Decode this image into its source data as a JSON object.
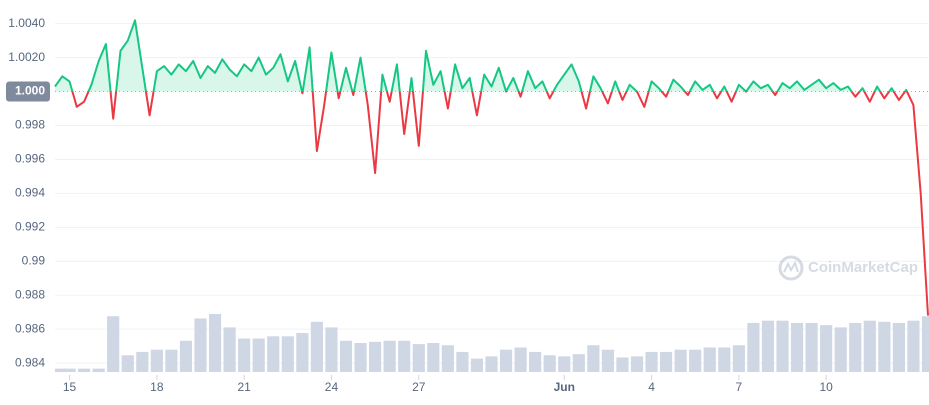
{
  "chart_data": {
    "type": "line",
    "x": [
      14.5,
      14.75,
      15,
      15.25,
      15.5,
      15.75,
      16,
      16.25,
      16.5,
      16.75,
      17,
      17.25,
      17.5,
      17.75,
      18,
      18.25,
      18.5,
      18.75,
      19,
      19.25,
      19.5,
      19.75,
      20,
      20.25,
      20.5,
      20.75,
      21,
      21.25,
      21.5,
      21.75,
      22,
      22.25,
      22.5,
      22.75,
      23,
      23.25,
      23.5,
      23.75,
      24,
      24.25,
      24.5,
      24.75,
      25,
      25.25,
      25.5,
      25.75,
      26,
      26.25,
      26.5,
      26.75,
      27,
      27.25,
      27.5,
      27.75,
      28,
      28.25,
      28.5,
      28.75,
      29,
      29.25,
      29.5,
      29.75,
      30,
      30.25,
      30.5,
      30.75,
      31,
      31.25,
      31.5,
      31.75,
      32,
      32.25,
      32.5,
      32.75,
      33,
      33.25,
      33.5,
      33.75,
      34,
      34.25,
      34.5,
      34.75,
      35,
      35.25,
      35.5,
      35.75,
      36,
      36.25,
      36.5,
      36.75,
      37,
      37.25,
      37.5,
      37.75,
      38,
      38.25,
      38.5,
      38.75,
      39,
      39.25,
      39.5,
      39.75,
      40,
      40.25,
      40.5,
      40.75,
      41,
      41.25,
      41.5,
      41.75,
      42,
      42.25,
      42.5,
      42.75,
      43,
      43.25,
      43.5,
      43.75,
      44,
      44.25,
      44.5
    ],
    "values": [
      1.0003,
      1.0009,
      1.0006,
      0.9991,
      0.9994,
      1.0004,
      1.0018,
      1.0028,
      0.9984,
      1.0024,
      1.003,
      1.0042,
      1.0014,
      0.9986,
      1.0012,
      1.0015,
      1.001,
      1.0016,
      1.0012,
      1.0018,
      1.0008,
      1.0015,
      1.0011,
      1.0019,
      1.0013,
      1.0009,
      1.0016,
      1.0012,
      1.002,
      1.001,
      1.0014,
      1.0022,
      1.0006,
      1.0018,
      0.9999,
      1.0026,
      0.9965,
      0.9992,
      1.0023,
      0.9996,
      1.0014,
      0.9998,
      1.002,
      0.9992,
      0.9952,
      1.001,
      0.9994,
      1.0016,
      0.9975,
      1.0008,
      0.9968,
      1.0024,
      1.0004,
      1.0012,
      0.999,
      1.0016,
      1.0002,
      1.0008,
      0.9986,
      1.001,
      1.0003,
      1.0014,
      1.0,
      1.0008,
      0.9997,
      1.0012,
      1.0002,
      1.0006,
      0.9996,
      1.0004,
      1.001,
      1.0016,
      1.0006,
      0.999,
      1.0009,
      1.0002,
      0.9993,
      1.0006,
      0.9995,
      1.0004,
      1.0,
      0.9991,
      1.0006,
      1.0002,
      0.9997,
      1.0007,
      1.0003,
      0.9998,
      1.0006,
      1.0001,
      1.0004,
      0.9996,
      1.0003,
      0.9994,
      1.0004,
      1.0,
      1.0006,
      1.0002,
      1.0004,
      0.9998,
      1.0005,
      1.0002,
      1.0006,
      1.0001,
      1.0004,
      1.0007,
      1.0002,
      1.0005,
      1.0001,
      1.0003,
      0.9997,
      1.0002,
      0.9994,
      1.0003,
      0.9996,
      1.0002,
      0.9995,
      1.0001,
      0.9992,
      0.994,
      0.9868
    ],
    "color_up": "#16c784",
    "color_down": "#ea3943",
    "fill_up": "#d9f6ea",
    "baseline": {
      "value": 1,
      "label": "1.000"
    },
    "xlim": [
      14.5,
      44.5
    ],
    "ylim": [
      0.9833,
      1.0051
    ],
    "yticks": [
      0.984,
      0.986,
      0.988,
      0.99,
      0.992,
      0.994,
      0.996,
      0.998,
      {
        "value": 1.002,
        "label": "1.0020"
      },
      {
        "value": 1.004,
        "label": "1.0040"
      }
    ],
    "xticks": [
      15,
      18,
      21,
      24,
      27,
      {
        "value": 32,
        "label": "Jun"
      },
      {
        "value": 35,
        "label": "4"
      },
      {
        "value": 38,
        "label": "7"
      },
      {
        "value": 41,
        "label": "10"
      }
    ],
    "grid": true,
    "volume": {
      "color": "#cfd6e4",
      "x": [
        14.5,
        15,
        15.5,
        16,
        16.5,
        17,
        17.5,
        18,
        18.5,
        19,
        19.5,
        20,
        20.5,
        21,
        21.5,
        22,
        22.5,
        23,
        23.5,
        24,
        24.5,
        25,
        25.5,
        26,
        26.5,
        27,
        27.5,
        28,
        28.5,
        29,
        29.5,
        30,
        30.5,
        31,
        31.5,
        32,
        32.5,
        33,
        33.5,
        34,
        34.5,
        35,
        35.5,
        36,
        36.5,
        37,
        37.5,
        38,
        38.5,
        39,
        39.5,
        40,
        40.5,
        41,
        41.5,
        42,
        42.5,
        43,
        43.5,
        44,
        44.5
      ],
      "values": [
        3,
        3,
        3,
        3,
        50,
        15,
        18,
        20,
        20,
        28,
        48,
        52,
        40,
        30,
        30,
        32,
        32,
        35,
        45,
        40,
        28,
        26,
        27,
        28,
        28,
        25,
        26,
        24,
        18,
        12,
        14,
        20,
        22,
        18,
        15,
        14,
        16,
        24,
        20,
        13,
        14,
        18,
        18,
        20,
        20,
        22,
        22,
        24,
        44,
        46,
        46,
        44,
        44,
        42,
        40,
        44,
        46,
        45,
        44,
        46,
        50
      ]
    },
    "watermark": "CoinMarketCap"
  }
}
